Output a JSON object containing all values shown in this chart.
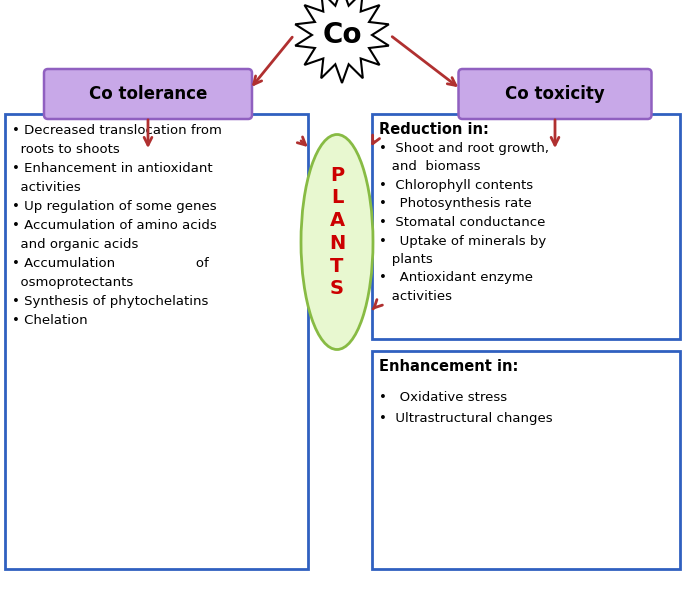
{
  "bg_color": "#ffffff",
  "co_label": "Co",
  "tolerance_label": "Co tolerance",
  "tolerance_box_color": "#c8a8e8",
  "toxicity_label": "Co toxicity",
  "toxicity_box_color": "#c8a8e8",
  "arrow_color": "#b03030",
  "plants_ellipse_color": "#e8f8d0",
  "plants_ellipse_edge": "#88bb44",
  "plants_text_color": "#cc0000",
  "left_box_border": "#3060c0",
  "right_box_border": "#3060c0",
  "label_box_border": "#9060c0",
  "tolerance_text": "• Decreased translocation from\n  roots to shoots\n• Enhancement in antioxidant\n  activities\n• Up regulation of some genes\n• Accumulation of amino acids\n  and organic acids\n• Accumulation                   of\n  osmoprotectants\n• Synthesis of phytochelatins\n• Chelation",
  "reduction_header": "Reduction in:",
  "reduction_text": "•  Shoot and root growth,\n   and  biomass\n•  Chlorophyll contents\n•   Photosynthesis rate\n•  Stomatal conductance\n•   Uptake of minerals by\n   plants\n•   Antioxidant enzyme\n   activities",
  "enhancement_header": "Enhancement in:",
  "enhancement_text": "•   Oxidative stress\n•  Ultrastructural changes",
  "plants_letters": "P\nL\nA\nN\nT\nS"
}
